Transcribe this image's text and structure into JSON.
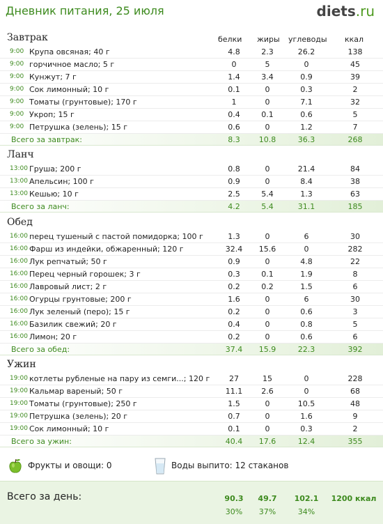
{
  "header": {
    "title": "Дневник питания, 25 июля",
    "logo_main": "diets",
    "logo_tld": ".ru"
  },
  "columns": {
    "protein": "белки",
    "fat": "жиры",
    "carbs": "углеводы",
    "kcal": "ккал"
  },
  "meals": [
    {
      "name": "Завтрак",
      "items": [
        {
          "time": "9:00",
          "name": "Крупа овсяная; 40 г",
          "p": "4.8",
          "f": "2.3",
          "c": "26.2",
          "k": "138"
        },
        {
          "time": "9:00",
          "name": "горчичное масло; 5 г",
          "p": "0",
          "f": "5",
          "c": "0",
          "k": "45"
        },
        {
          "time": "9:00",
          "name": "Кунжут; 7 г",
          "p": "1.4",
          "f": "3.4",
          "c": "0.9",
          "k": "39"
        },
        {
          "time": "9:00",
          "name": "Сок лимонный; 10 г",
          "p": "0.1",
          "f": "0",
          "c": "0.3",
          "k": "2"
        },
        {
          "time": "9:00",
          "name": "Томаты (грунтовые); 170 г",
          "p": "1",
          "f": "0",
          "c": "7.1",
          "k": "32"
        },
        {
          "time": "9:00",
          "name": "Укроп; 15 г",
          "p": "0.4",
          "f": "0.1",
          "c": "0.6",
          "k": "5"
        },
        {
          "time": "9:00",
          "name": "Петрушка (зелень); 15 г",
          "p": "0.6",
          "f": "0",
          "c": "1.2",
          "k": "7"
        }
      ],
      "total": {
        "label": "Всего за завтрак:",
        "p": "8.3",
        "f": "10.8",
        "c": "36.3",
        "k": "268"
      }
    },
    {
      "name": "Ланч",
      "items": [
        {
          "time": "13:00",
          "name": "Груша; 200 г",
          "p": "0.8",
          "f": "0",
          "c": "21.4",
          "k": "84"
        },
        {
          "time": "13:00",
          "name": "Апельсин; 100 г",
          "p": "0.9",
          "f": "0",
          "c": "8.4",
          "k": "38"
        },
        {
          "time": "13:00",
          "name": "Кешью; 10 г",
          "p": "2.5",
          "f": "5.4",
          "c": "1.3",
          "k": "63"
        }
      ],
      "total": {
        "label": "Всего за ланч:",
        "p": "4.2",
        "f": "5.4",
        "c": "31.1",
        "k": "185"
      }
    },
    {
      "name": "Обед",
      "items": [
        {
          "time": "16:00",
          "name": "перец тушеный с пастой помидорка; 100 г",
          "p": "1.3",
          "f": "0",
          "c": "6",
          "k": "30"
        },
        {
          "time": "16:00",
          "name": "Фарш из индейки, обжаренный; 120 г",
          "p": "32.4",
          "f": "15.6",
          "c": "0",
          "k": "282"
        },
        {
          "time": "16:00",
          "name": "Лук репчатый; 50 г",
          "p": "0.9",
          "f": "0",
          "c": "4.8",
          "k": "22"
        },
        {
          "time": "16:00",
          "name": "Перец черный горошек; 3 г",
          "p": "0.3",
          "f": "0.1",
          "c": "1.9",
          "k": "8"
        },
        {
          "time": "16:00",
          "name": "Лавровый лист; 2 г",
          "p": "0.2",
          "f": "0.2",
          "c": "1.5",
          "k": "6"
        },
        {
          "time": "16:00",
          "name": "Огурцы грунтовые; 200 г",
          "p": "1.6",
          "f": "0",
          "c": "6",
          "k": "30"
        },
        {
          "time": "16:00",
          "name": "Лук зеленый (перо); 15 г",
          "p": "0.2",
          "f": "0",
          "c": "0.6",
          "k": "3"
        },
        {
          "time": "16:00",
          "name": "Базилик свежий; 20 г",
          "p": "0.4",
          "f": "0",
          "c": "0.8",
          "k": "5"
        },
        {
          "time": "16:00",
          "name": "Лимон; 20 г",
          "p": "0.2",
          "f": "0",
          "c": "0.6",
          "k": "6"
        }
      ],
      "total": {
        "label": "Всего за обед:",
        "p": "37.4",
        "f": "15.9",
        "c": "22.3",
        "k": "392"
      }
    },
    {
      "name": "Ужин",
      "items": [
        {
          "time": "19:00",
          "name": "котлеты рубленые на пару из семги...; 120 г",
          "p": "27",
          "f": "15",
          "c": "0",
          "k": "228"
        },
        {
          "time": "19:00",
          "name": "Кальмар вареный; 50 г",
          "p": "11.1",
          "f": "2.6",
          "c": "0",
          "k": "68"
        },
        {
          "time": "19:00",
          "name": "Томаты (грунтовые); 250 г",
          "p": "1.5",
          "f": "0",
          "c": "10.5",
          "k": "48"
        },
        {
          "time": "19:00",
          "name": "Петрушка (зелень); 20 г",
          "p": "0.7",
          "f": "0",
          "c": "1.6",
          "k": "9"
        },
        {
          "time": "19:00",
          "name": "Сок лимонный; 10 г",
          "p": "0.1",
          "f": "0",
          "c": "0.3",
          "k": "2"
        }
      ],
      "total": {
        "label": "Всего за ужин:",
        "p": "40.4",
        "f": "17.6",
        "c": "12.4",
        "k": "355"
      }
    }
  ],
  "extras": {
    "fruits": "Фрукты и овощи: 0",
    "water": "Воды выпито: 12 стаканов",
    "apple_icon": "apple-icon",
    "glass_icon": "water-glass-icon"
  },
  "day": {
    "label": "Всего за день:",
    "p": "90.3",
    "f": "49.7",
    "c": "102.1",
    "k": "1200 ккал",
    "p_pct": "30%",
    "f_pct": "37%",
    "c_pct": "34%"
  }
}
